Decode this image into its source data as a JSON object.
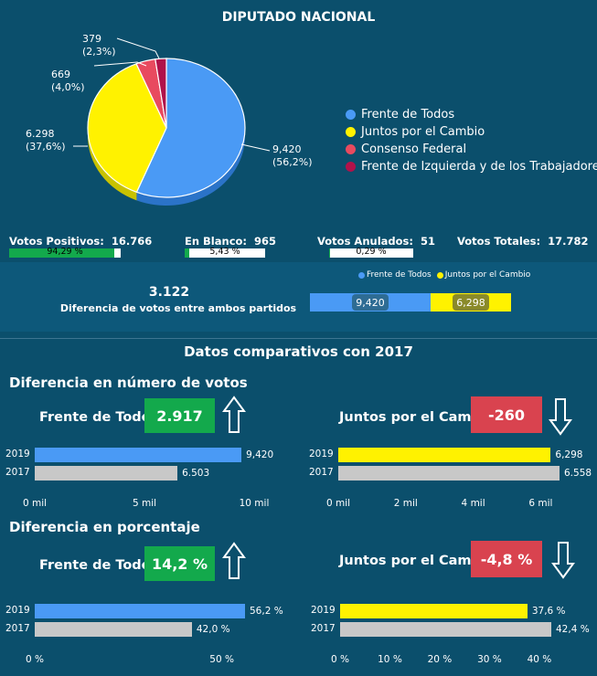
{
  "header": {
    "title": "DIPUTADO NACIONAL"
  },
  "colors": {
    "fdt": "#4a9af5",
    "jxc": "#fff200",
    "cf": "#e84a5f",
    "fit": "#b0124a",
    "green": "#13a94c",
    "red": "#d9434f",
    "grey": "#c8c8c8"
  },
  "chart_data": [
    {
      "type": "pie",
      "title": "DIPUTADO NACIONAL",
      "slices": [
        {
          "name": "Frente de Todos",
          "value": 9420,
          "label": "9,420",
          "pct": "(56,2%)"
        },
        {
          "name": "Juntos por el Cambio",
          "value": 6298,
          "label": "6.298",
          "pct": "(37,6%)"
        },
        {
          "name": "Consenso Federal",
          "value": 669,
          "label": "669",
          "pct": "(4,0%)"
        },
        {
          "name": "Frente de Izquierda y de los Trabajadores",
          "value": 379,
          "label": "379",
          "pct": "(2,3%)"
        }
      ]
    },
    {
      "type": "bar",
      "title": "Diferencia en número de votos",
      "panel": "Frente de Todos",
      "categories": [
        "2019",
        "2017"
      ],
      "values": [
        9420,
        6503
      ],
      "value_labels": [
        "9,420",
        "6.503"
      ],
      "xlim": [
        0,
        10000
      ],
      "ticks": [
        "0 mil",
        "5 mil",
        "10 mil"
      ]
    },
    {
      "type": "bar",
      "title": "Diferencia en número de votos",
      "panel": "Juntos por el Cambio",
      "categories": [
        "2019",
        "2017"
      ],
      "values": [
        6298,
        6558
      ],
      "value_labels": [
        "6,298",
        "6.558"
      ],
      "xlim": [
        0,
        6558
      ],
      "ticks": [
        "0 mil",
        "2 mil",
        "4 mil",
        "6 mil"
      ]
    },
    {
      "type": "bar",
      "title": "Diferencia en porcentaje",
      "panel": "Frente de Todos",
      "categories": [
        "2019",
        "2017"
      ],
      "values": [
        56.2,
        42.0
      ],
      "value_labels": [
        "56,2 %",
        "42,0 %"
      ],
      "xlim": [
        0,
        56.2
      ],
      "ticks": [
        "0 %",
        "50 %"
      ]
    },
    {
      "type": "bar",
      "title": "Diferencia en porcentaje",
      "panel": "Juntos por el Cambio",
      "categories": [
        "2019",
        "2017"
      ],
      "values": [
        37.6,
        42.4
      ],
      "value_labels": [
        "37,6 %",
        "42,4 %"
      ],
      "xlim": [
        0,
        42.4
      ],
      "ticks": [
        "0 %",
        "10 %",
        "20 %",
        "30 %",
        "40 %"
      ]
    }
  ],
  "stats": {
    "positivos": {
      "label": "Votos Positivos:",
      "value": "16.766",
      "pct_text": "94,29 %",
      "pct": 94.29
    },
    "blanco": {
      "label": "En Blanco:",
      "value": "965",
      "pct_text": "5,43 %",
      "pct": 5.43
    },
    "anulados": {
      "label": "Votos Anulados:",
      "value": "51",
      "pct_text": "0,29 %",
      "pct": 0.29
    },
    "totales": {
      "label": "Votos Totales:",
      "value": "17.782"
    }
  },
  "diff": {
    "value": "3.122",
    "label": "Diferencia de votos entre ambos partidos",
    "legend": [
      "Frente de Todos",
      "Juntos por el Cambio"
    ],
    "fdt_value": 9420,
    "fdt_label": "9,420",
    "jxc_value": 6298,
    "jxc_label": "6,298"
  },
  "compare": {
    "title": "Datos comparativos con 2017",
    "votes_title": "Diferencia en número de votos",
    "pct_title": "Diferencia en porcentaje",
    "fdt_name": "Frente de Todos",
    "jxc_name": "Juntos por el Cambio",
    "fdt_votes_diff": "2.917",
    "jxc_votes_diff": "-260",
    "fdt_pct_diff": "14,2 %",
    "jxc_pct_diff": "-4,8 %"
  }
}
